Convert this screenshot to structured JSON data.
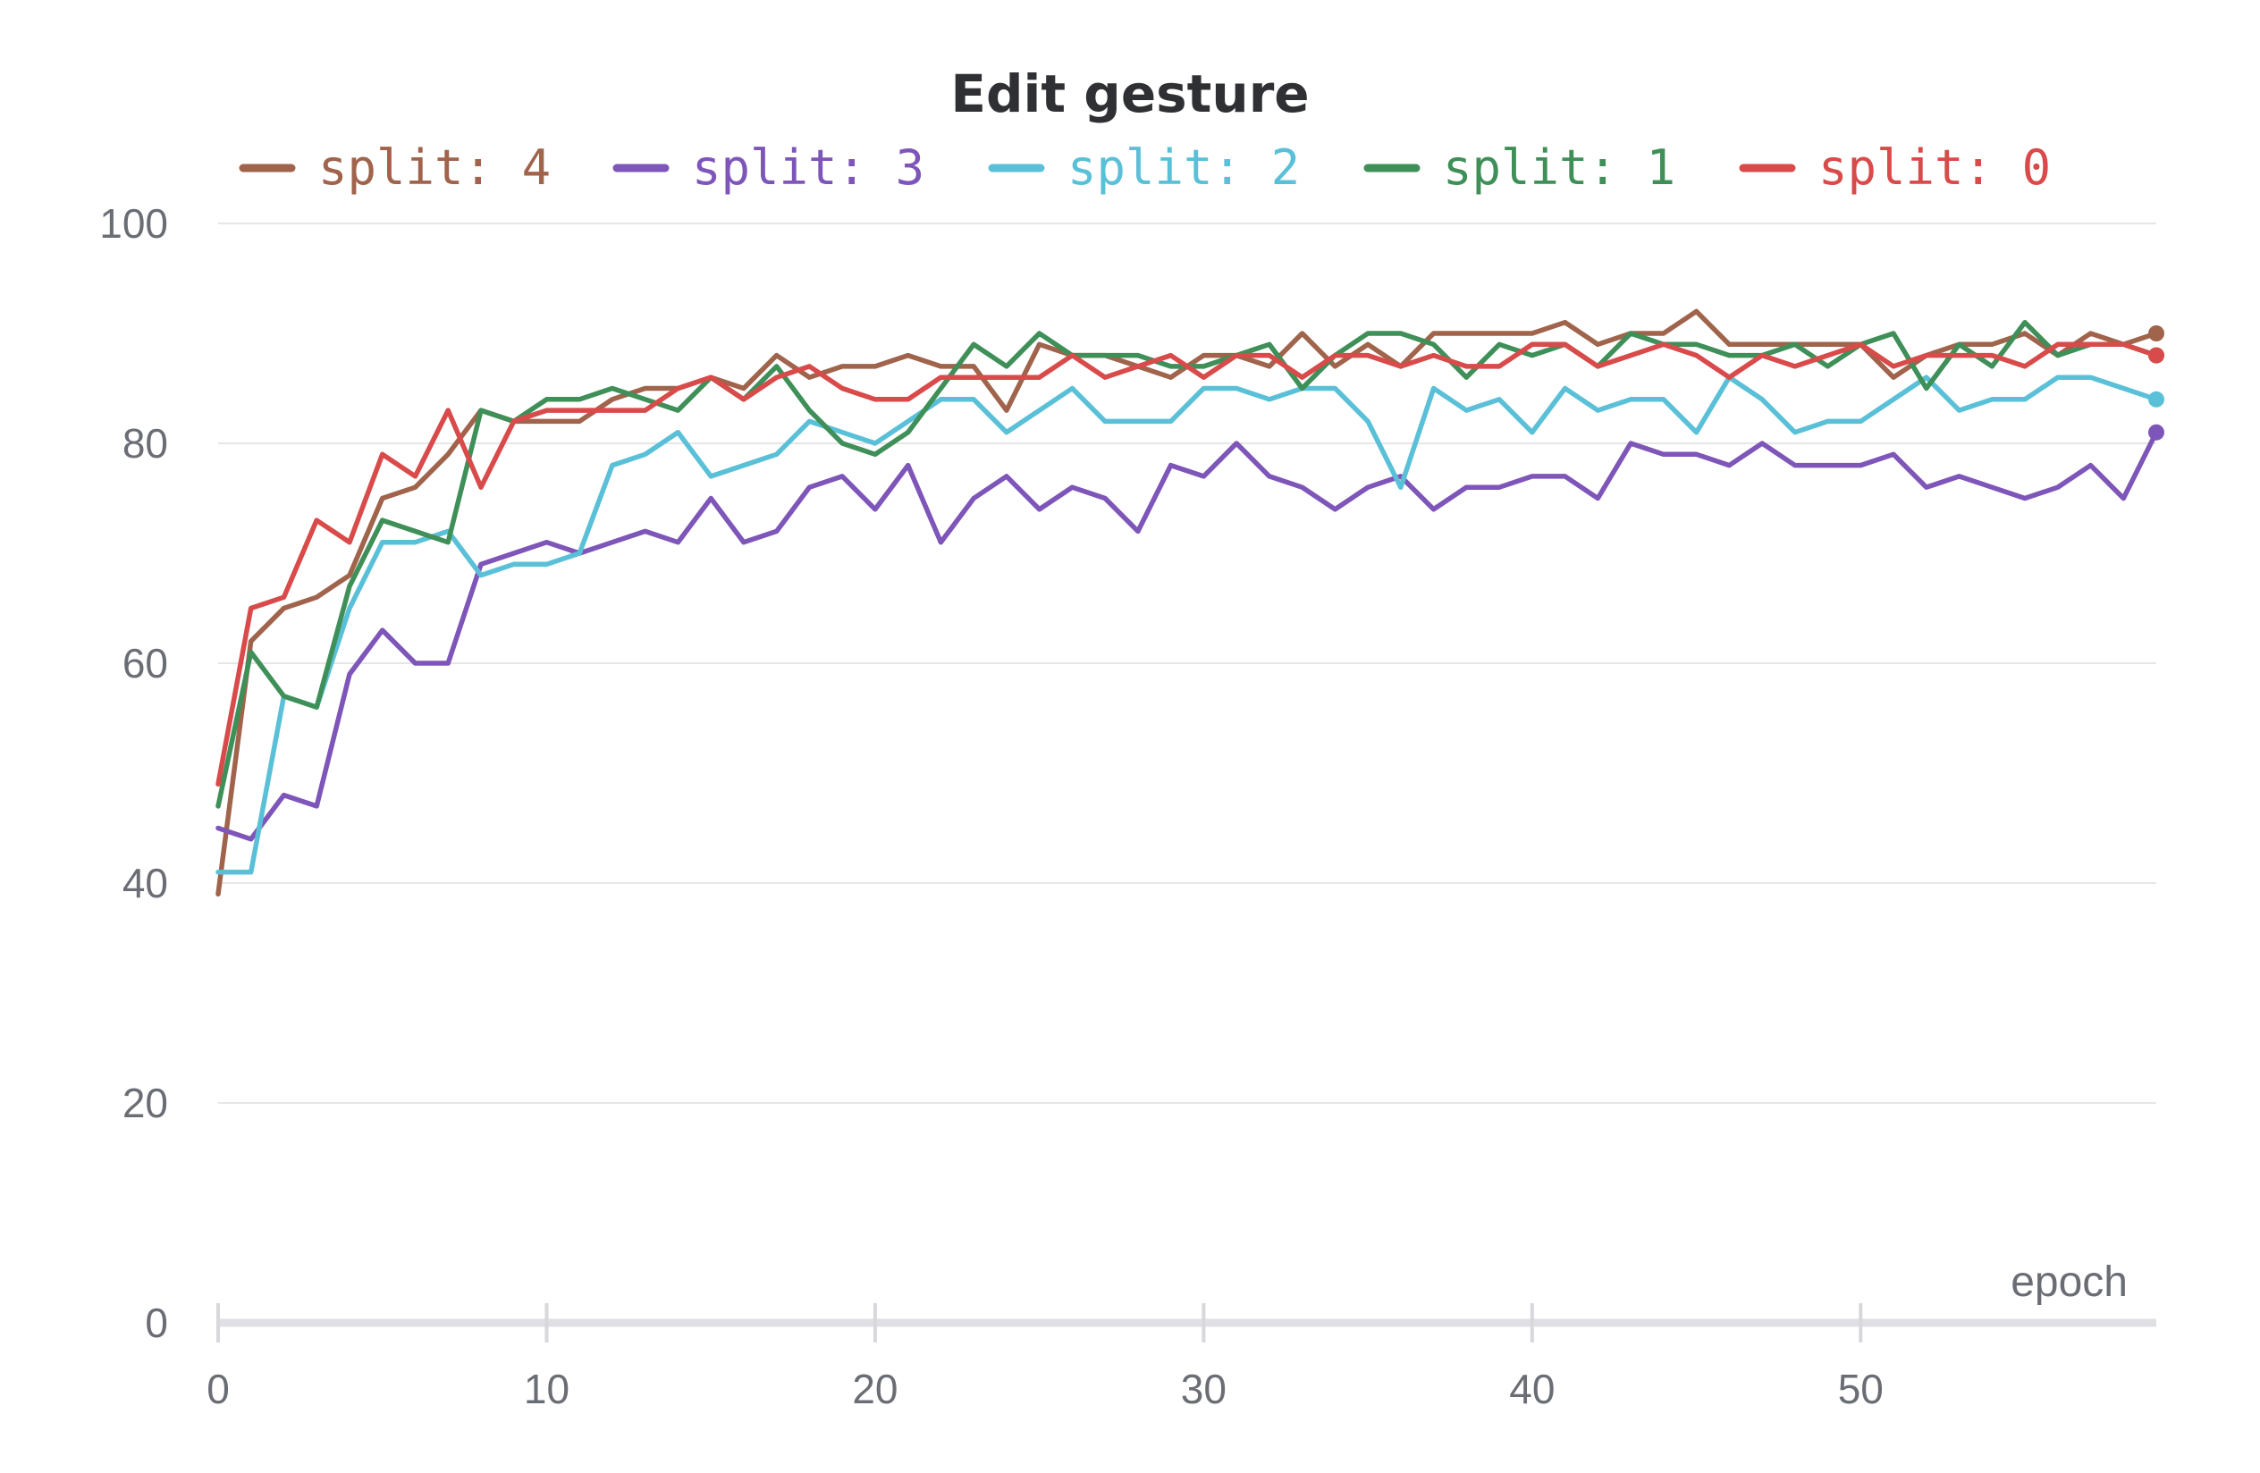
{
  "chart_data": {
    "type": "line",
    "title": "Edit gesture",
    "xlabel": "epoch",
    "ylabel": "",
    "xlim": [
      0,
      59
    ],
    "ylim": [
      0,
      100
    ],
    "xticks": [
      0,
      10,
      20,
      30,
      40,
      50
    ],
    "yticks": [
      0,
      20,
      40,
      60,
      80,
      100
    ],
    "grid": true,
    "legend_position": "top",
    "x": [
      0,
      1,
      2,
      3,
      4,
      5,
      6,
      7,
      8,
      9,
      10,
      11,
      12,
      13,
      14,
      15,
      16,
      17,
      18,
      19,
      20,
      21,
      22,
      23,
      24,
      25,
      26,
      27,
      28,
      29,
      30,
      31,
      32,
      33,
      34,
      35,
      36,
      37,
      38,
      39,
      40,
      41,
      42,
      43,
      44,
      45,
      46,
      47,
      48,
      49,
      50,
      51,
      52,
      53,
      54,
      55,
      56,
      57,
      58,
      59
    ],
    "series": [
      {
        "name": "split: 4",
        "color": "#a0634b",
        "values": [
          39,
          62,
          65,
          66,
          68,
          75,
          76,
          79,
          83,
          82,
          82,
          82,
          84,
          85,
          85,
          86,
          85,
          88,
          86,
          87,
          87,
          88,
          87,
          87,
          83,
          89,
          88,
          88,
          87,
          86,
          88,
          88,
          87,
          90,
          87,
          89,
          87,
          90,
          90,
          90,
          90,
          91,
          89,
          90,
          90,
          92,
          89,
          89,
          89,
          89,
          89,
          86,
          88,
          89,
          89,
          90,
          88,
          90,
          89,
          90
        ]
      },
      {
        "name": "split: 3",
        "color": "#7e55b8",
        "values": [
          45,
          44,
          48,
          47,
          59,
          63,
          60,
          60,
          69,
          70,
          71,
          70,
          71,
          72,
          71,
          75,
          71,
          72,
          76,
          77,
          74,
          78,
          71,
          75,
          77,
          74,
          76,
          75,
          72,
          78,
          77,
          80,
          77,
          76,
          74,
          76,
          77,
          74,
          76,
          76,
          77,
          77,
          75,
          80,
          79,
          79,
          78,
          80,
          78,
          78,
          78,
          79,
          76,
          77,
          76,
          75,
          76,
          78,
          75,
          81
        ]
      },
      {
        "name": "split: 2",
        "color": "#5ac0d8",
        "values": [
          41,
          41,
          57,
          56,
          65,
          71,
          71,
          72,
          68,
          69,
          69,
          70,
          78,
          79,
          81,
          77,
          78,
          79,
          82,
          81,
          80,
          82,
          84,
          84,
          81,
          83,
          85,
          82,
          82,
          82,
          85,
          85,
          84,
          85,
          85,
          82,
          76,
          85,
          83,
          84,
          81,
          85,
          83,
          84,
          84,
          81,
          86,
          84,
          81,
          82,
          82,
          84,
          86,
          83,
          84,
          84,
          86,
          86,
          85,
          84
        ]
      },
      {
        "name": "split: 1",
        "color": "#3f8f58",
        "values": [
          47,
          61,
          57,
          56,
          67,
          73,
          72,
          71,
          83,
          82,
          84,
          84,
          85,
          84,
          83,
          86,
          84,
          87,
          83,
          80,
          79,
          81,
          85,
          89,
          87,
          90,
          88,
          88,
          88,
          87,
          87,
          88,
          89,
          85,
          88,
          90,
          90,
          89,
          86,
          89,
          88,
          89,
          87,
          90,
          89,
          89,
          88,
          88,
          89,
          87,
          89,
          90,
          85,
          89,
          87,
          91,
          88,
          89,
          89,
          88
        ]
      },
      {
        "name": "split: 0",
        "color": "#d94a4a",
        "values": [
          49,
          65,
          66,
          73,
          71,
          79,
          77,
          83,
          76,
          82,
          83,
          83,
          83,
          83,
          85,
          86,
          84,
          86,
          87,
          85,
          84,
          84,
          86,
          86,
          86,
          86,
          88,
          86,
          87,
          88,
          86,
          88,
          88,
          86,
          88,
          88,
          87,
          88,
          87,
          87,
          89,
          89,
          87,
          88,
          89,
          88,
          86,
          88,
          87,
          88,
          89,
          87,
          88,
          88,
          88,
          87,
          89,
          89,
          89,
          88
        ]
      }
    ]
  }
}
